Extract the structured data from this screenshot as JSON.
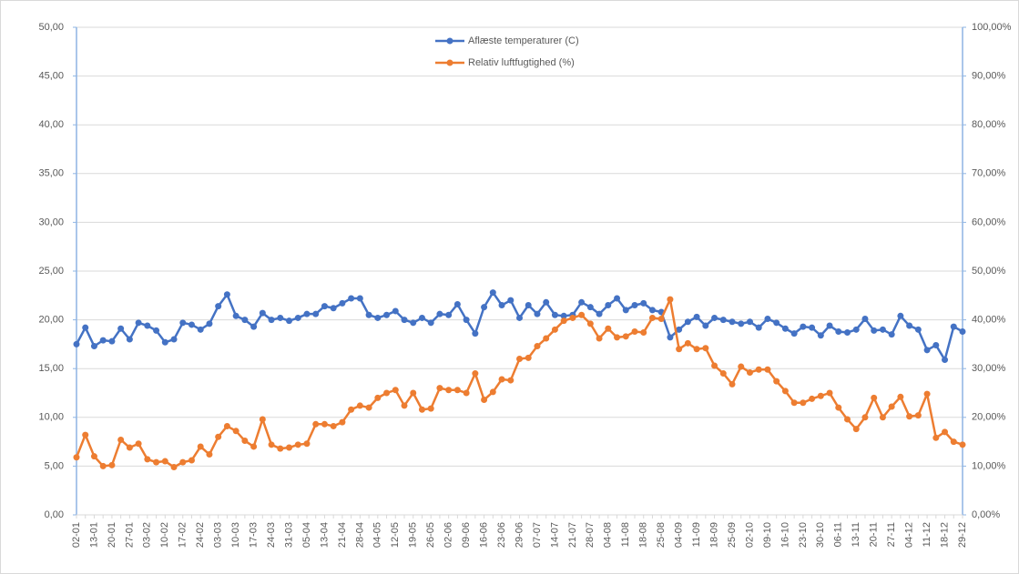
{
  "chart_data": {
    "type": "line",
    "categories": [
      "02-01",
      null,
      "13-01",
      null,
      "20-01",
      null,
      "27-01",
      null,
      "03-02",
      null,
      "10-02",
      null,
      "17-02",
      null,
      "24-02",
      null,
      "03-03",
      null,
      "10-03",
      null,
      "17-03",
      null,
      "24-03",
      null,
      "31-03",
      null,
      "05-04",
      null,
      "13-04",
      null,
      "21-04",
      null,
      "28-04",
      null,
      "04-05",
      null,
      "12-05",
      null,
      "19-05",
      null,
      "26-05",
      null,
      "02-06",
      null,
      "09-06",
      null,
      "16-06",
      null,
      "23-06",
      null,
      "29-06",
      null,
      "07-07",
      null,
      "14-07",
      null,
      "21-07",
      null,
      "28-07",
      null,
      "04-08",
      null,
      "11-08",
      null,
      "18-08",
      null,
      "25-08",
      null,
      "04-09",
      null,
      "11-09",
      null,
      "18-09",
      null,
      "25-09",
      null,
      "02-10",
      null,
      "09-10",
      null,
      "16-10",
      null,
      "23-10",
      null,
      "30-10",
      null,
      "06-11",
      null,
      "13-11",
      null,
      "20-11",
      null,
      "27-11",
      null,
      "04-12",
      null,
      "11-12",
      null,
      "18-12",
      null,
      "29-12"
    ],
    "series": [
      {
        "name": "Aflæste temperaturer (C)",
        "color": "#4472c4",
        "axis": "y",
        "values": [
          17.5,
          19.2,
          17.3,
          17.9,
          17.8,
          19.1,
          18.0,
          19.7,
          19.4,
          18.9,
          17.7,
          18.0,
          19.7,
          19.5,
          19.0,
          19.6,
          21.4,
          22.6,
          20.4,
          20.0,
          19.3,
          20.7,
          20.0,
          20.2,
          19.9,
          20.2,
          20.6,
          20.6,
          21.4,
          21.2,
          21.7,
          22.2,
          22.2,
          20.5,
          20.2,
          20.5,
          20.9,
          20.0,
          19.7,
          20.2,
          19.7,
          20.6,
          20.5,
          21.6,
          20.0,
          18.6,
          21.3,
          22.8,
          21.5,
          22.0,
          20.2,
          21.5,
          20.6,
          21.8,
          20.5,
          20.4,
          20.5,
          21.8,
          21.3,
          20.6,
          21.5,
          22.2,
          21.0,
          21.5,
          21.7,
          21.0,
          20.8,
          18.2,
          19.0,
          19.8,
          20.3,
          19.4,
          20.2,
          20.0,
          19.8,
          19.6,
          19.8,
          19.2,
          20.1,
          19.7,
          19.1,
          18.6,
          19.3,
          19.2,
          18.4,
          19.4,
          18.8,
          18.7,
          19.0,
          20.1,
          18.9,
          19.0,
          18.5,
          20.4,
          19.4,
          19.0,
          16.9,
          17.4,
          15.9,
          19.3,
          18.8
        ]
      },
      {
        "name": "Relativ luftfugtighed (%)",
        "color": "#ed7d31",
        "axis": "y2",
        "values": [
          11.8,
          16.4,
          12.0,
          10.0,
          10.2,
          15.4,
          13.8,
          14.6,
          11.4,
          10.8,
          11.0,
          9.8,
          10.8,
          11.2,
          14.0,
          12.4,
          16.0,
          18.2,
          17.2,
          15.2,
          14.0,
          19.6,
          14.4,
          13.6,
          13.8,
          14.4,
          14.6,
          18.6,
          18.6,
          18.2,
          19.0,
          21.6,
          22.4,
          22.0,
          24.0,
          25.0,
          25.6,
          22.4,
          25.0,
          21.6,
          21.8,
          26.0,
          25.6,
          25.6,
          25.0,
          29.0,
          23.6,
          25.2,
          27.8,
          27.6,
          32.0,
          32.2,
          34.6,
          36.2,
          38.0,
          39.8,
          40.4,
          41.0,
          39.2,
          36.2,
          38.2,
          36.4,
          36.6,
          37.6,
          37.4,
          40.4,
          40.2,
          44.2,
          34.0,
          35.2,
          34.0,
          34.2,
          30.6,
          29.0,
          26.8,
          30.4,
          29.2,
          29.8,
          29.8,
          27.4,
          25.4,
          23.0,
          23.0,
          23.8,
          24.4,
          25.0,
          22.0,
          19.6,
          17.6,
          20.0,
          24.0,
          20.0,
          22.2,
          24.2,
          20.2,
          20.4,
          24.8,
          15.8,
          17.0,
          15.0,
          14.4
        ]
      }
    ],
    "ylim": [
      0,
      50
    ],
    "yticks": [
      {
        "value": 0,
        "label": "0,00"
      },
      {
        "value": 5,
        "label": "5,00"
      },
      {
        "value": 10,
        "label": "10,00"
      },
      {
        "value": 15,
        "label": "15,00"
      },
      {
        "value": 20,
        "label": "20,00"
      },
      {
        "value": 25,
        "label": "25,00"
      },
      {
        "value": 30,
        "label": "30,00"
      },
      {
        "value": 35,
        "label": "35,00"
      },
      {
        "value": 40,
        "label": "40,00"
      },
      {
        "value": 45,
        "label": "45,00"
      },
      {
        "value": 50,
        "label": "50,00"
      }
    ],
    "y2lim": [
      0,
      100
    ],
    "y2ticks": [
      {
        "value": 0,
        "label": "0,00%"
      },
      {
        "value": 10,
        "label": "10,00%"
      },
      {
        "value": 20,
        "label": "20,00%"
      },
      {
        "value": 30,
        "label": "30,00%"
      },
      {
        "value": 40,
        "label": "40,00%"
      },
      {
        "value": 50,
        "label": "50,00%"
      },
      {
        "value": 60,
        "label": "60,00%"
      },
      {
        "value": 70,
        "label": "70,00%"
      },
      {
        "value": 80,
        "label": "80,00%"
      },
      {
        "value": 90,
        "label": "90,00%"
      },
      {
        "value": 100,
        "label": "100,00%"
      }
    ],
    "grid": true,
    "legend": "top"
  }
}
